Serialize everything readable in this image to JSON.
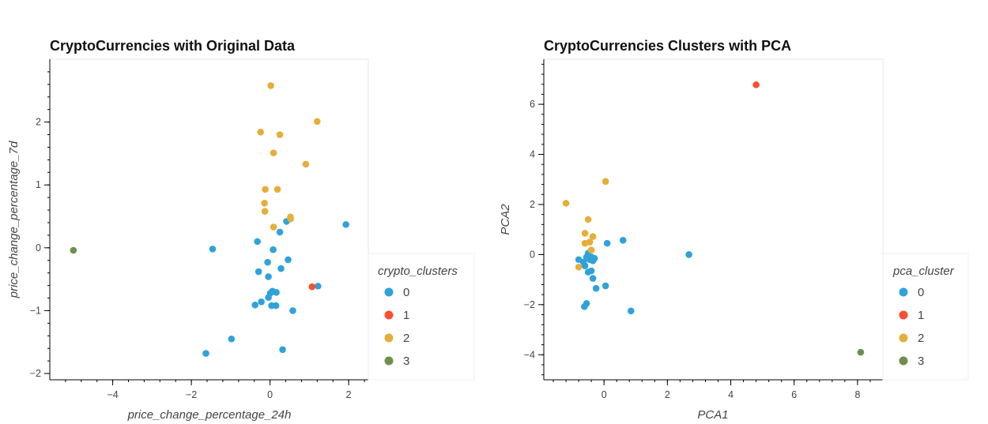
{
  "chart_data": [
    {
      "type": "scatter",
      "title": "CryptoCurrencies with Original Data",
      "xlabel": "price_change_percentage_24h",
      "ylabel": "price_change_percentage_7d",
      "xlim": [
        -5.6,
        2.5
      ],
      "ylim": [
        -2.1,
        3.0
      ],
      "x_ticks": [
        -4,
        -2,
        0,
        2
      ],
      "y_ticks": [
        -2,
        -1,
        0,
        1,
        2
      ],
      "x_tick_labels": [
        "−4",
        "−2",
        "0",
        "2"
      ],
      "y_tick_labels": [
        "−2",
        "−1",
        "0",
        "1",
        "2"
      ],
      "legend": {
        "title": "crypto_clusters",
        "placement": "right",
        "entries": [
          "0",
          "1",
          "2",
          "3"
        ]
      },
      "series": [
        {
          "name": "0",
          "color": "#30a2da",
          "points": [
            [
              -1.63,
              -1.68
            ],
            [
              -1.46,
              -0.02
            ],
            [
              -0.98,
              -1.45
            ],
            [
              -0.32,
              0.1
            ],
            [
              -0.29,
              -0.38
            ],
            [
              -0.22,
              -0.86
            ],
            [
              -0.06,
              -0.23
            ],
            [
              -0.04,
              -0.46
            ],
            [
              -0.04,
              -0.79
            ],
            [
              0.01,
              -0.72
            ],
            [
              0.06,
              -0.69
            ],
            [
              0.08,
              -0.03
            ],
            [
              0.16,
              -0.71
            ],
            [
              0.04,
              -0.92
            ],
            [
              0.15,
              -0.92
            ],
            [
              0.25,
              0.25
            ],
            [
              0.28,
              -0.33
            ],
            [
              0.32,
              -1.62
            ],
            [
              0.42,
              0.42
            ],
            [
              0.46,
              -0.19
            ],
            [
              0.58,
              -1.0
            ],
            [
              1.22,
              -0.61
            ],
            [
              1.93,
              0.37
            ],
            [
              -0.38,
              -0.91
            ]
          ]
        },
        {
          "name": "1",
          "color": "#fc4f30",
          "points": [
            [
              1.07,
              -0.62
            ]
          ]
        },
        {
          "name": "2",
          "color": "#e5ae38",
          "points": [
            [
              0.02,
              2.58
            ],
            [
              -0.24,
              1.84
            ],
            [
              0.25,
              1.8
            ],
            [
              1.2,
              2.01
            ],
            [
              0.09,
              1.51
            ],
            [
              0.91,
              1.33
            ],
            [
              -0.12,
              0.93
            ],
            [
              0.19,
              0.93
            ],
            [
              -0.14,
              0.71
            ],
            [
              -0.13,
              0.58
            ],
            [
              0.52,
              0.49
            ],
            [
              0.52,
              0.46
            ],
            [
              0.09,
              0.33
            ]
          ]
        },
        {
          "name": "3",
          "color": "#6d904f",
          "points": [
            [
              -5.0,
              -0.04
            ]
          ]
        }
      ]
    },
    {
      "type": "scatter",
      "title": "CryptoCurrencies Clusters with PCA",
      "xlabel": "PCA1",
      "ylabel": "PCA2",
      "xlim": [
        -1.9,
        8.8
      ],
      "ylim": [
        -5.0,
        7.8
      ],
      "x_ticks": [
        0,
        2,
        4,
        6,
        8
      ],
      "y_ticks": [
        -4,
        -2,
        0,
        2,
        4,
        6
      ],
      "x_tick_labels": [
        "0",
        "2",
        "4",
        "6",
        "8"
      ],
      "y_tick_labels": [
        "−4",
        "−2",
        "0",
        "2",
        "4",
        "6"
      ],
      "legend": {
        "title": "pca_cluster",
        "placement": "right",
        "entries": [
          "0",
          "1",
          "2",
          "3"
        ]
      },
      "series": [
        {
          "name": "0",
          "color": "#30a2da",
          "points": [
            [
              -0.8,
              -0.2
            ],
            [
              -0.65,
              -0.3
            ],
            [
              -0.6,
              -0.45
            ],
            [
              -0.55,
              -0.1
            ],
            [
              -0.45,
              -0.2
            ],
            [
              -0.4,
              -0.1
            ],
            [
              -0.35,
              -0.25
            ],
            [
              -0.3,
              -0.15
            ],
            [
              -0.5,
              -0.7
            ],
            [
              -0.4,
              -0.65
            ],
            [
              -0.35,
              -0.95
            ],
            [
              -0.25,
              -1.35
            ],
            [
              0.05,
              -1.25
            ],
            [
              0.1,
              0.45
            ],
            [
              0.6,
              0.57
            ],
            [
              2.68,
              0.0
            ],
            [
              0.85,
              -2.25
            ],
            [
              -0.55,
              -1.95
            ],
            [
              -0.62,
              -2.08
            ],
            [
              -0.5,
              0.05
            ]
          ]
        },
        {
          "name": "1",
          "color": "#fc4f30",
          "points": [
            [
              4.8,
              6.78
            ]
          ]
        },
        {
          "name": "2",
          "color": "#e5ae38",
          "points": [
            [
              0.05,
              2.92
            ],
            [
              -1.2,
              2.05
            ],
            [
              -0.5,
              1.4
            ],
            [
              -0.6,
              0.85
            ],
            [
              -0.35,
              0.72
            ],
            [
              -0.45,
              0.5
            ],
            [
              -0.6,
              0.45
            ],
            [
              -0.4,
              0.18
            ],
            [
              -0.8,
              -0.5
            ]
          ]
        },
        {
          "name": "3",
          "color": "#6d904f",
          "points": [
            [
              8.1,
              -3.9
            ]
          ]
        }
      ]
    }
  ]
}
